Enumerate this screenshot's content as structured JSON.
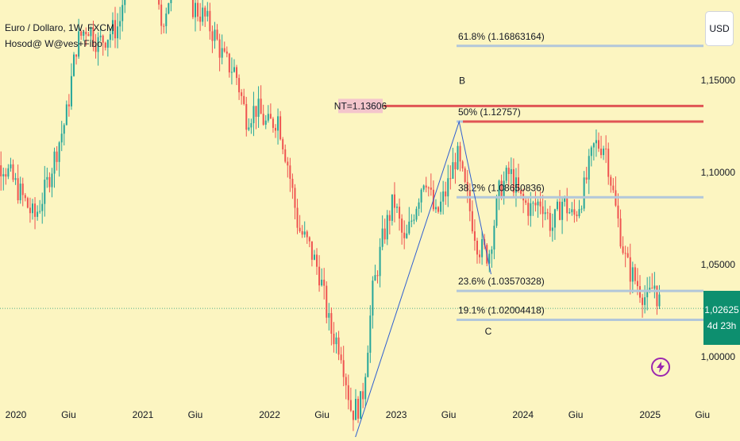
{
  "legend": {
    "symbol": "Euro / Dollaro, 1W, FXCM",
    "indicator": "Hosod@ W@ves+Fibo"
  },
  "currency": "USD",
  "current_price": {
    "price": "1,02625",
    "countdown": "4d 23h"
  },
  "colors": {
    "background": "#fcf5c1",
    "candle_up": "#26a69a",
    "candle_down": "#ef5350",
    "fib_line": "#b2c7da",
    "nt_line": "#e05555",
    "wave_line": "#2f5fd0",
    "price_tag": "#0d8f6f",
    "flash_icon": "#9c27b0"
  },
  "chart_data": {
    "type": "candlestick",
    "symbol": "EUR/USD",
    "timeframe": "1W",
    "y_ticks": [
      "1,15000",
      "1,10000",
      "1,05000",
      "1,00000"
    ],
    "y_tick_values": [
      1.15,
      1.1,
      1.05,
      1.0
    ],
    "x_ticks": [
      "2020",
      "Giu",
      "2021",
      "Giu",
      "2022",
      "Giu",
      "2023",
      "Giu",
      "2024",
      "Giu",
      "2025",
      "Giu"
    ],
    "x_tick_dates": [
      "2020-01",
      "2020-06",
      "2021-01",
      "2021-06",
      "2022-01",
      "2022-06",
      "2023-01",
      "2023-06",
      "2024-01",
      "2024-06",
      "2025-01",
      "2025-06"
    ],
    "current_price": 1.02625,
    "fib_levels": [
      {
        "label": "61.8% (1.16863164)",
        "value": 1.16863164
      },
      {
        "label": "50% (1.12757)",
        "value": 1.12757
      },
      {
        "label": "38.2% (1.08650836)",
        "value": 1.08650836
      },
      {
        "label": "23.6% (1.03570328)",
        "value": 1.03570328
      },
      {
        "label": "19.1% (1.02004418)",
        "value": 1.02004418
      }
    ],
    "nt_level": {
      "label": "NT=1.13606",
      "value": 1.13606
    },
    "wave_labels": [
      "B",
      "C"
    ],
    "wave_points": [
      {
        "date": "2022-09",
        "value": 0.954
      },
      {
        "date": "2023-07",
        "value": 1.1275
      },
      {
        "date": "2023-10",
        "value": 1.0448
      }
    ],
    "price_path": [
      [
        "2019-10",
        1.095
      ],
      [
        "2019-12",
        1.105
      ],
      [
        "2020-02",
        1.085
      ],
      [
        "2020-03",
        1.075
      ],
      [
        "2020-04",
        1.09
      ],
      [
        "2020-05",
        1.11
      ],
      [
        "2020-06",
        1.13
      ],
      [
        "2020-07",
        1.17
      ],
      [
        "2020-08",
        1.18
      ],
      [
        "2020-09",
        1.17
      ],
      [
        "2020-10",
        1.175
      ],
      [
        "2020-11",
        1.18
      ],
      [
        "2020-12",
        1.22
      ],
      [
        "2021-01",
        1.215
      ],
      [
        "2021-02",
        1.21
      ],
      [
        "2021-03",
        1.18
      ],
      [
        "2021-04",
        1.2
      ],
      [
        "2021-05",
        1.22
      ],
      [
        "2021-06",
        1.19
      ],
      [
        "2021-07",
        1.185
      ],
      [
        "2021-08",
        1.175
      ],
      [
        "2021-09",
        1.16
      ],
      [
        "2021-10",
        1.155
      ],
      [
        "2021-11",
        1.13
      ],
      [
        "2021-12",
        1.135
      ],
      [
        "2022-01",
        1.125
      ],
      [
        "2022-02",
        1.13
      ],
      [
        "2022-03",
        1.105
      ],
      [
        "2022-04",
        1.07
      ],
      [
        "2022-05",
        1.06
      ],
      [
        "2022-06",
        1.045
      ],
      [
        "2022-07",
        1.015
      ],
      [
        "2022-08",
        1.005
      ],
      [
        "2022-09",
        0.97
      ],
      [
        "2022-10",
        0.975
      ],
      [
        "2022-11",
        1.035
      ],
      [
        "2022-12",
        1.065
      ],
      [
        "2023-01",
        1.085
      ],
      [
        "2023-02",
        1.06
      ],
      [
        "2023-03",
        1.08
      ],
      [
        "2023-04",
        1.1
      ],
      [
        "2023-05",
        1.075
      ],
      [
        "2023-06",
        1.09
      ],
      [
        "2023-07",
        1.11
      ],
      [
        "2023-08",
        1.085
      ],
      [
        "2023-09",
        1.06
      ],
      [
        "2023-10",
        1.055
      ],
      [
        "2023-11",
        1.09
      ],
      [
        "2023-12",
        1.1
      ],
      [
        "2024-01",
        1.085
      ],
      [
        "2024-02",
        1.08
      ],
      [
        "2024-03",
        1.085
      ],
      [
        "2024-04",
        1.07
      ],
      [
        "2024-05",
        1.085
      ],
      [
        "2024-06",
        1.075
      ],
      [
        "2024-07",
        1.09
      ],
      [
        "2024-08",
        1.115
      ],
      [
        "2024-09",
        1.115
      ],
      [
        "2024-10",
        1.08
      ],
      [
        "2024-11",
        1.05
      ],
      [
        "2024-12",
        1.04
      ],
      [
        "2025-01",
        1.03
      ],
      [
        "2025-01-20",
        1.04
      ],
      [
        "2025-02",
        1.03
      ]
    ]
  }
}
